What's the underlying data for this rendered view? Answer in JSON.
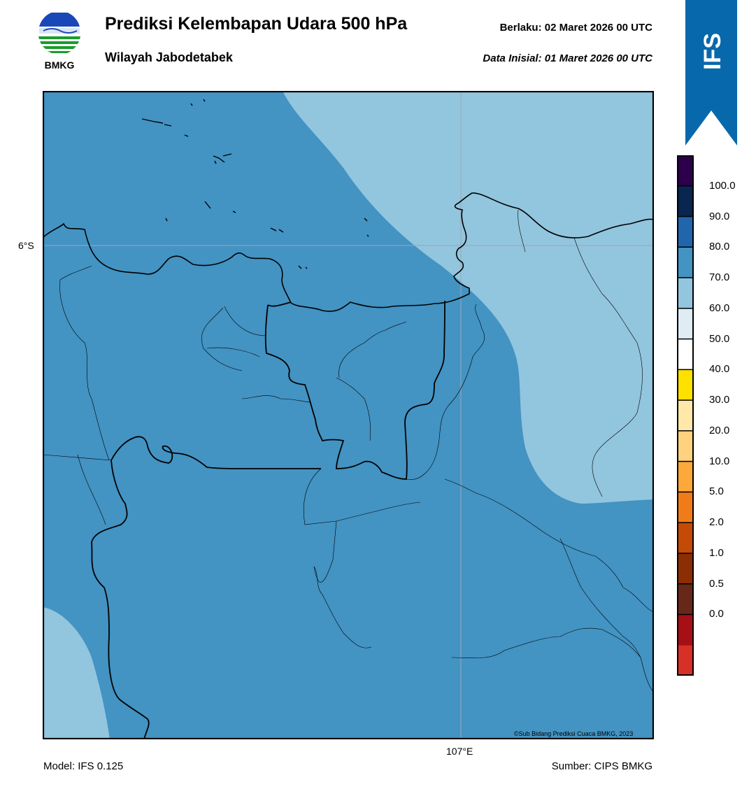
{
  "header": {
    "logo_text": "BMKG",
    "title": "Prediksi Kelembapan Udara 500 hPa",
    "subtitle": "Wilayah Jabodetabek",
    "valid_label": "Berlaku:  02 Maret 2026 00 UTC",
    "init_label": "Data Inisial:  01 Maret 2026 00 UTC",
    "badge": "IFS"
  },
  "map": {
    "lat_label": "6°S",
    "lon_label": "107°E",
    "credit": "©Sub Bidang Prediksi Cuaca BMKG, 2023",
    "colors": {
      "humidity_70_80": "#4393c3",
      "humidity_60_70": "#92c5de",
      "border": "#000000",
      "grid": "#9aa9b4"
    }
  },
  "colorbar": {
    "ticks": [
      "100.0",
      "90.0",
      "80.0",
      "70.0",
      "60.0",
      "50.0",
      "40.0",
      "30.0",
      "20.0",
      "10.0",
      "5.0",
      "2.0",
      "1.0",
      "0.5",
      "0.0"
    ],
    "colors": [
      "#d73027",
      "#a50f15",
      "#67281a",
      "#8b2e04",
      "#c44a05",
      "#f07c19",
      "#fda83a",
      "#fed27e",
      "#ffe8a8",
      "#ffe100",
      "#ffffff",
      "#e0ecf4",
      "#92c5de",
      "#4393c3",
      "#2166ac",
      "#08264f",
      "#2d004b"
    ]
  },
  "footer": {
    "model": "Model: IFS 0.125",
    "source": "Sumber: CIPS BMKG"
  }
}
